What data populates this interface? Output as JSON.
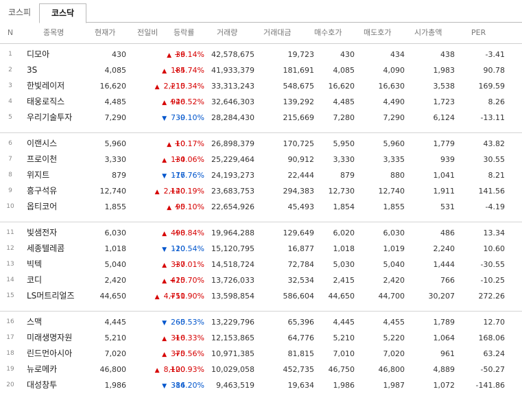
{
  "tabs": [
    {
      "label": "코스피",
      "active": false
    },
    {
      "label": "코스닥",
      "active": true
    }
  ],
  "columns": [
    "N",
    "종목명",
    "현재가",
    "전일비",
    "등락률",
    "거래량",
    "거래대금",
    "매수호가",
    "매도호가",
    "시가총액",
    "PER"
  ],
  "colors": {
    "up": "#d60000",
    "down": "#0055cc",
    "border": "#b9b9b9"
  },
  "rows": [
    {
      "n": "1",
      "name": "디모아",
      "price": "430",
      "dir": "up",
      "chg": "36",
      "rate": "+9.14%",
      "vol": "42,578,675",
      "amt": "19,723",
      "bid": "430",
      "ask": "434",
      "cap": "438",
      "per": "-3.41"
    },
    {
      "n": "2",
      "name": "3S",
      "price": "4,085",
      "dir": "up",
      "chg": "185",
      "rate": "+4.74%",
      "vol": "41,933,379",
      "amt": "181,691",
      "bid": "4,085",
      "ask": "4,090",
      "cap": "1,983",
      "per": "90.78"
    },
    {
      "n": "3",
      "name": "한빛레이저",
      "price": "16,620",
      "dir": "up",
      "chg": "2,210",
      "rate": "+15.34%",
      "vol": "33,313,243",
      "amt": "548,675",
      "bid": "16,620",
      "ask": "16,630",
      "cap": "3,538",
      "per": "169.59"
    },
    {
      "n": "4",
      "name": "태웅로직스",
      "price": "4,485",
      "dir": "up",
      "chg": "940",
      "rate": "+26.52%",
      "vol": "32,646,303",
      "amt": "139,292",
      "bid": "4,485",
      "ask": "4,490",
      "cap": "1,723",
      "per": "8.26"
    },
    {
      "n": "5",
      "name": "우리기술투자",
      "price": "7,290",
      "dir": "down",
      "chg": "730",
      "rate": "-9.10%",
      "vol": "28,284,430",
      "amt": "215,669",
      "bid": "7,280",
      "ask": "7,290",
      "cap": "6,124",
      "per": "-13.11"
    },
    {
      "n": "6",
      "name": "이랜시스",
      "price": "5,960",
      "dir": "up",
      "chg": "10",
      "rate": "+0.17%",
      "vol": "26,898,379",
      "amt": "170,725",
      "bid": "5,950",
      "ask": "5,960",
      "cap": "1,779",
      "per": "43.82"
    },
    {
      "n": "7",
      "name": "프로이천",
      "price": "3,330",
      "dir": "up",
      "chg": "130",
      "rate": "+4.06%",
      "vol": "25,229,464",
      "amt": "90,912",
      "bid": "3,330",
      "ask": "3,335",
      "cap": "939",
      "per": "30.55"
    },
    {
      "n": "8",
      "name": "위지트",
      "price": "879",
      "dir": "down",
      "chg": "177",
      "rate": "-16.76%",
      "vol": "24,193,273",
      "amt": "22,444",
      "bid": "879",
      "ask": "880",
      "cap": "1,041",
      "per": "8.21"
    },
    {
      "n": "9",
      "name": "흥구석유",
      "price": "12,740",
      "dir": "up",
      "chg": "2,140",
      "rate": "+20.19%",
      "vol": "23,683,753",
      "amt": "294,383",
      "bid": "12,730",
      "ask": "12,740",
      "cap": "1,911",
      "per": "141.56"
    },
    {
      "n": "10",
      "name": "옵티코어",
      "price": "1,855",
      "dir": "up",
      "chg": "90",
      "rate": "+5.10%",
      "vol": "22,654,926",
      "amt": "45,493",
      "bid": "1,854",
      "ask": "1,855",
      "cap": "531",
      "per": "-4.19"
    },
    {
      "n": "11",
      "name": "빛샘전자",
      "price": "6,030",
      "dir": "up",
      "chg": "490",
      "rate": "+8.84%",
      "vol": "19,964,288",
      "amt": "129,649",
      "bid": "6,020",
      "ask": "6,030",
      "cap": "486",
      "per": "13.34"
    },
    {
      "n": "12",
      "name": "세종텔레콤",
      "price": "1,018",
      "dir": "down",
      "chg": "120",
      "rate": "-10.54%",
      "vol": "15,120,795",
      "amt": "16,877",
      "bid": "1,018",
      "ask": "1,019",
      "cap": "2,240",
      "per": "10.60"
    },
    {
      "n": "13",
      "name": "빅텍",
      "price": "5,040",
      "dir": "up",
      "chg": "330",
      "rate": "+7.01%",
      "vol": "14,518,724",
      "amt": "72,784",
      "bid": "5,030",
      "ask": "5,040",
      "cap": "1,444",
      "per": "-30.55"
    },
    {
      "n": "14",
      "name": "코디",
      "price": "2,420",
      "dir": "up",
      "chg": "415",
      "rate": "+20.70%",
      "vol": "13,726,033",
      "amt": "32,534",
      "bid": "2,415",
      "ask": "2,420",
      "cap": "766",
      "per": "-10.25"
    },
    {
      "n": "15",
      "name": "LS머트리얼즈",
      "price": "44,650",
      "dir": "up",
      "chg": "4,750",
      "rate": "+11.90%",
      "vol": "13,598,854",
      "amt": "586,604",
      "bid": "44,650",
      "ask": "44,700",
      "cap": "30,207",
      "per": "272.26"
    },
    {
      "n": "16",
      "name": "스맥",
      "price": "4,445",
      "dir": "down",
      "chg": "260",
      "rate": "-5.53%",
      "vol": "13,229,796",
      "amt": "65,396",
      "bid": "4,445",
      "ask": "4,455",
      "cap": "1,789",
      "per": "12.70"
    },
    {
      "n": "17",
      "name": "미래생명자원",
      "price": "5,210",
      "dir": "up",
      "chg": "310",
      "rate": "+6.33%",
      "vol": "12,153,865",
      "amt": "64,776",
      "bid": "5,210",
      "ask": "5,220",
      "cap": "1,064",
      "per": "168.06"
    },
    {
      "n": "18",
      "name": "린드먼아시아",
      "price": "7,020",
      "dir": "up",
      "chg": "370",
      "rate": "+5.56%",
      "vol": "10,971,385",
      "amt": "81,815",
      "bid": "7,010",
      "ask": "7,020",
      "cap": "961",
      "per": "63.24"
    },
    {
      "n": "19",
      "name": "뉴로메카",
      "price": "46,800",
      "dir": "up",
      "chg": "8,100",
      "rate": "+20.93%",
      "vol": "10,029,058",
      "amt": "452,735",
      "bid": "46,750",
      "ask": "46,800",
      "cap": "4,889",
      "per": "-50.27"
    },
    {
      "n": "20",
      "name": "대성창투",
      "price": "1,986",
      "dir": "down",
      "chg": "384",
      "rate": "-16.20%",
      "vol": "9,463,519",
      "amt": "19,634",
      "bid": "1,986",
      "ask": "1,987",
      "cap": "1,072",
      "per": "-141.86"
    }
  ]
}
